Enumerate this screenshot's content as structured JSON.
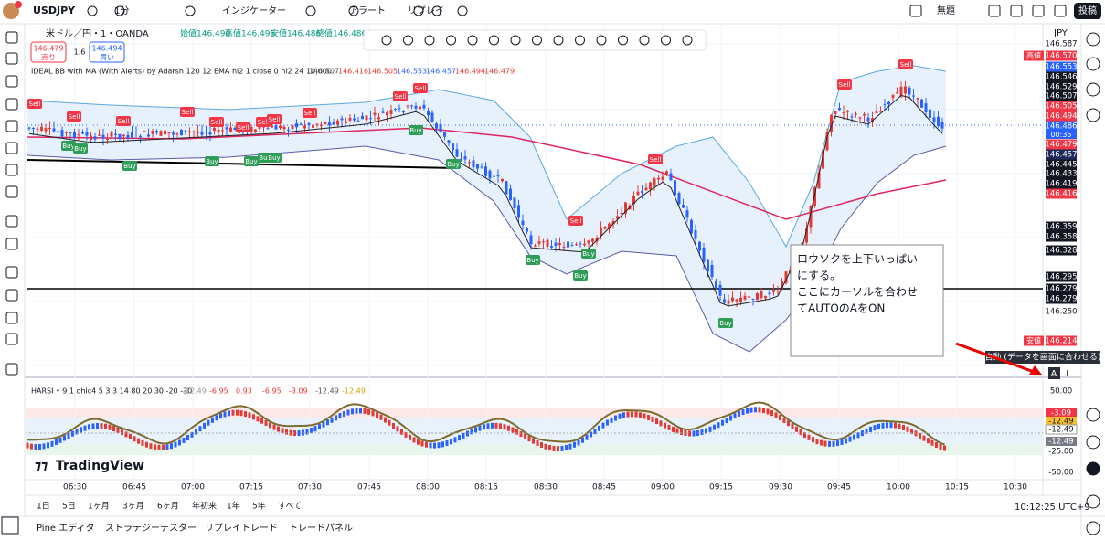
{
  "header": {
    "symbol": "USDJPY",
    "interval": "1分",
    "indicators": "インジケーター",
    "alert": "アラート",
    "replay": "リプレイ",
    "layout_name": "無題",
    "publish": "投稿"
  },
  "legend": {
    "title": "米ドル／円・1・OANDA",
    "ohlc": [
      "始値146.490",
      "高値146.496",
      "安値146.486",
      "終値146.486"
    ],
    "sell_price": "146.479",
    "sell": "売り",
    "spread": "1.6",
    "buy_price": "146.494",
    "buy": "買い",
    "indicator": "IDEAL BB with MA (With Alerts) by Adarsh 120 12 EMA hl2 1 close 0 hl2 24 10,000",
    "indicator_values": [
      "146.507",
      "146.416",
      "146.505",
      "146.553",
      "146.457",
      "146.494",
      "146.479"
    ]
  },
  "signals": {
    "sell": "Sell",
    "buy": "Buy"
  },
  "price_axis": {
    "currency": "JPY",
    "high_tag": "高値",
    "low_tag": "安値",
    "countdown": "00:35",
    "labels": [
      "146.587",
      "146.570",
      "146.553",
      "146.546",
      "146.529",
      "146.507",
      "146.505",
      "146.494",
      "146.486",
      "146.479",
      "146.457",
      "146.445",
      "146.433",
      "146.419",
      "146.416",
      "146.359",
      "146.358",
      "146.328",
      "146.295",
      "146.279",
      "146.279",
      "146.250",
      "146.214"
    ]
  },
  "annotation": [
    "ロウソクを上下いっぱい",
    "にする。",
    "ここにカーソルを合わせ",
    "てAUTOのAをON"
  ],
  "tooltip": "自動 (データを画面に合わせる)",
  "auto_button": "A",
  "log_button": "L",
  "oscillator": {
    "label": "HARSI • 9 1 ohlc4 5 3 3 14 80 20 30 -20 -30",
    "values": [
      "-12.49",
      "-6.95",
      "0.93",
      "-6.95",
      "-3.09",
      "-12.49",
      "-12.49"
    ],
    "axis": [
      "50.00",
      "-3.09",
      "-12.49",
      "-12.49",
      "-12.49",
      "-25.00",
      "-50.00"
    ]
  },
  "brand": "TradingView",
  "time_axis": [
    "06:30",
    "06:45",
    "07:00",
    "07:15",
    "07:30",
    "07:45",
    "08:00",
    "08:15",
    "08:30",
    "08:45",
    "09:00",
    "09:15",
    "09:30",
    "09:45",
    "10:00",
    "10:15",
    "10:30"
  ],
  "ranges": [
    "1日",
    "5日",
    "1ヶ月",
    "3ヶ月",
    "6ヶ月",
    "年初来",
    "1年",
    "5年",
    "すべて"
  ],
  "clock": "10:12:25 UTC+9",
  "tabs": [
    "Pine エディタ",
    "ストラテジーテスター",
    "リプレイトレード",
    "トレードパネル"
  ]
}
